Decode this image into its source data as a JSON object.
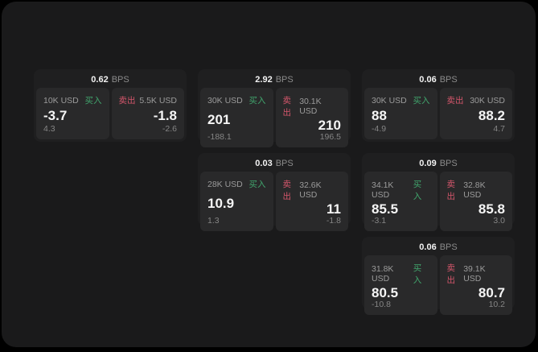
{
  "labels": {
    "buy": "买入",
    "sell": "卖出",
    "bps_suffix": "BPS"
  },
  "colors": {
    "buy_green": "#41a56d",
    "sell_red": "#d4566b",
    "surface": "#1a1a1b",
    "card_bg": "#1f1f20",
    "panel_bg": "#29292a",
    "value_white": "#f5f5f5",
    "muted_gray": "#858585"
  },
  "cards": [
    {
      "row": 1,
      "col": 1,
      "bps": "0.62",
      "buy": {
        "amount": "10K USD",
        "value": "-3.7",
        "sub": "4.3"
      },
      "sell": {
        "amount": "5.5K USD",
        "value": "-1.8",
        "sub": "-2.6"
      }
    },
    {
      "row": 1,
      "col": 2,
      "bps": "2.92",
      "buy": {
        "amount": "30K USD",
        "value": "201",
        "sub": "-188.1"
      },
      "sell": {
        "amount": "30.1K USD",
        "value": "210",
        "sub": "196.5"
      }
    },
    {
      "row": 1,
      "col": 3,
      "bps": "0.06",
      "buy": {
        "amount": "30K USD",
        "value": "88",
        "sub": "-4.9"
      },
      "sell": {
        "amount": "30K USD",
        "value": "88.2",
        "sub": "4.7"
      }
    },
    {
      "row": 2,
      "col": 2,
      "bps": "0.03",
      "buy": {
        "amount": "28K USD",
        "value": "10.9",
        "sub": "1.3"
      },
      "sell": {
        "amount": "32.6K USD",
        "value": "11",
        "sub": "-1.8"
      }
    },
    {
      "row": 2,
      "col": 3,
      "bps": "0.09",
      "buy": {
        "amount": "34.1K USD",
        "value": "85.5",
        "sub": "-3.1"
      },
      "sell": {
        "amount": "32.8K USD",
        "value": "85.8",
        "sub": "3.0"
      }
    },
    {
      "row": 3,
      "col": 3,
      "bps": "0.06",
      "buy": {
        "amount": "31.8K USD",
        "value": "80.5",
        "sub": "-10.8"
      },
      "sell": {
        "amount": "39.1K USD",
        "value": "80.7",
        "sub": "10.2"
      }
    }
  ]
}
